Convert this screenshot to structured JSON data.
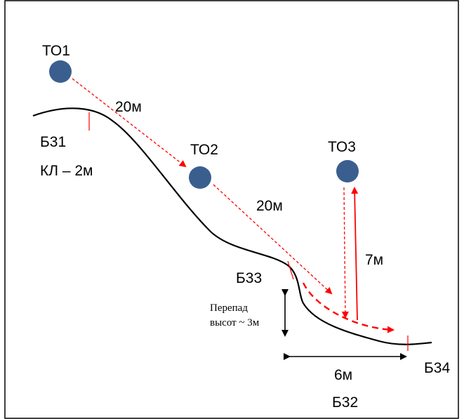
{
  "points": {
    "to1": "ТО1",
    "to2": "ТО2",
    "to3": "ТО3"
  },
  "boundaries": {
    "b31": "Б31",
    "b31_note": "КЛ – 2м",
    "b33": "Б33",
    "b34": "Б34",
    "b32": "Б32"
  },
  "distances": {
    "to1_to2": "20м",
    "to2_to_slope": "20м",
    "to3_vertical": "7м",
    "bottom_span": "6м"
  },
  "height_diff": {
    "line1": "Перепад",
    "line2": "высот ~ 3м"
  },
  "colors": {
    "point_fill": "#3a5f8f",
    "route": "#ff0000",
    "terrain": "#000000"
  }
}
